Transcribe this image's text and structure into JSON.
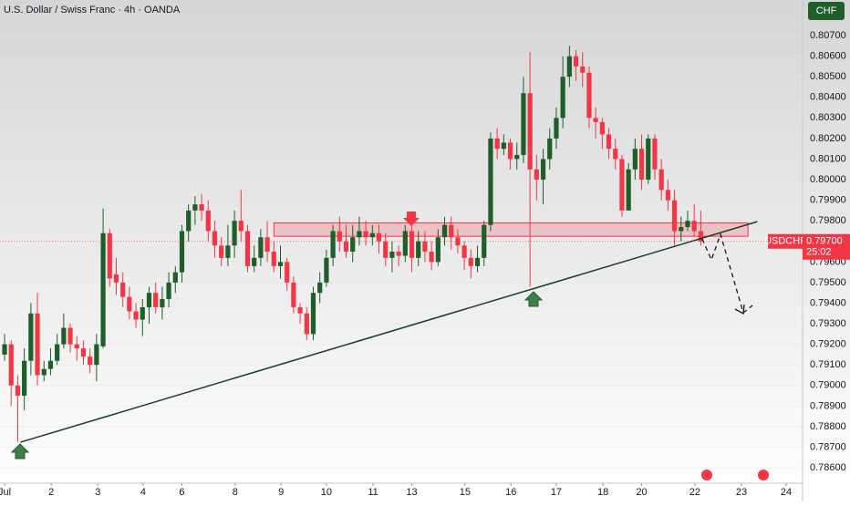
{
  "chart_data": {
    "type": "candlestick",
    "title": "U.S. Dollar / Swiss Franc · 4h · OANDA",
    "currency": "CHF",
    "symbol": "USDCHF",
    "last_price": {
      "value": 0.797,
      "label": "0.79700"
    },
    "countdown": "25:02",
    "up_color": "#1e5e2a",
    "down_color": "#f23645",
    "ylim": [
      0.78525,
      0.80873
    ],
    "xlim": [
      -0.7,
      121.5
    ],
    "yticks": [
      {
        "value": 0.786,
        "label": "0.78600"
      },
      {
        "value": 0.787,
        "label": "0.78700"
      },
      {
        "value": 0.788,
        "label": "0.78800"
      },
      {
        "value": 0.789,
        "label": "0.78900"
      },
      {
        "value": 0.79,
        "label": "0.79000"
      },
      {
        "value": 0.791,
        "label": "0.79100"
      },
      {
        "value": 0.792,
        "label": "0.79200"
      },
      {
        "value": 0.793,
        "label": "0.79300"
      },
      {
        "value": 0.794,
        "label": "0.79400"
      },
      {
        "value": 0.795,
        "label": "0.79500"
      },
      {
        "value": 0.796,
        "label": "0.79600"
      },
      {
        "value": 0.797,
        "label": "0.79700"
      },
      {
        "value": 0.798,
        "label": "0.79800"
      },
      {
        "value": 0.799,
        "label": "0.79900"
      },
      {
        "value": 0.8,
        "label": "0.80000"
      },
      {
        "value": 0.801,
        "label": "0.80100"
      },
      {
        "value": 0.802,
        "label": "0.80200"
      },
      {
        "value": 0.803,
        "label": "0.80300"
      },
      {
        "value": 0.804,
        "label": "0.80400"
      },
      {
        "value": 0.805,
        "label": "0.80500"
      },
      {
        "value": 0.806,
        "label": "0.80600"
      },
      {
        "value": 0.807,
        "label": "0.80700"
      }
    ],
    "xticks": [
      {
        "value": 0,
        "label": "Jul"
      },
      {
        "value": 7.1,
        "label": "2"
      },
      {
        "value": 14.2,
        "label": "3"
      },
      {
        "value": 21.1,
        "label": "4"
      },
      {
        "value": 27,
        "label": "6"
      },
      {
        "value": 35.1,
        "label": "8"
      },
      {
        "value": 42.1,
        "label": "9"
      },
      {
        "value": 49,
        "label": "10"
      },
      {
        "value": 56.1,
        "label": "11"
      },
      {
        "value": 62,
        "label": "13"
      },
      {
        "value": 70.1,
        "label": "15"
      },
      {
        "value": 77.1,
        "label": "16"
      },
      {
        "value": 84,
        "label": "17"
      },
      {
        "value": 91.1,
        "label": "18"
      },
      {
        "value": 97,
        "label": "20"
      },
      {
        "value": 105.1,
        "label": "22"
      },
      {
        "value": 112.2,
        "label": "23"
      },
      {
        "value": 119,
        "label": "24"
      }
    ],
    "zone": {
      "x": [
        41,
        113.2
      ],
      "top": 0.7979,
      "bottom": 0.79725
    },
    "trendline": {
      "x": [
        2.4,
        114.6
      ],
      "y": [
        0.78724,
        0.79796
      ]
    },
    "candles": [
      [
        0.7915,
        0.7925,
        0.7912,
        0.792
      ],
      [
        0.792,
        0.7922,
        0.789,
        0.79
      ],
      [
        0.79,
        0.7905,
        0.78725,
        0.7895
      ],
      [
        0.7895,
        0.7918,
        0.7888,
        0.7912
      ],
      [
        0.7912,
        0.794,
        0.7905,
        0.7935
      ],
      [
        0.7935,
        0.7945,
        0.79,
        0.7905
      ],
      [
        0.7905,
        0.7912,
        0.7902,
        0.7908
      ],
      [
        0.7908,
        0.7918,
        0.7905,
        0.7912
      ],
      [
        0.7912,
        0.7925,
        0.791,
        0.792
      ],
      [
        0.792,
        0.7935,
        0.7918,
        0.7928
      ],
      [
        0.7928,
        0.793,
        0.7916,
        0.792
      ],
      [
        0.792,
        0.7924,
        0.7912,
        0.7918
      ],
      [
        0.7918,
        0.7922,
        0.791,
        0.7914
      ],
      [
        0.7914,
        0.7918,
        0.7906,
        0.791
      ],
      [
        0.791,
        0.7925,
        0.7902,
        0.792
      ],
      [
        0.7919,
        0.7986,
        0.7918,
        0.7974
      ],
      [
        0.7974,
        0.7976,
        0.7948,
        0.7952
      ],
      [
        0.7954,
        0.7962,
        0.7944,
        0.795
      ],
      [
        0.795,
        0.7955,
        0.7938,
        0.7943
      ],
      [
        0.7943,
        0.7948,
        0.7932,
        0.7936
      ],
      [
        0.7936,
        0.794,
        0.7928,
        0.7932
      ],
      [
        0.7932,
        0.7942,
        0.7924,
        0.7938
      ],
      [
        0.7938,
        0.7948,
        0.793,
        0.7945
      ],
      [
        0.7945,
        0.795,
        0.7935,
        0.7938
      ],
      [
        0.7938,
        0.7948,
        0.7932,
        0.7942
      ],
      [
        0.7942,
        0.7955,
        0.7938,
        0.795
      ],
      [
        0.795,
        0.7958,
        0.7945,
        0.7955
      ],
      [
        0.7955,
        0.7978,
        0.795,
        0.7975
      ],
      [
        0.7975,
        0.7988,
        0.797,
        0.7985
      ],
      [
        0.7985,
        0.7992,
        0.7978,
        0.7988
      ],
      [
        0.7988,
        0.7993,
        0.798,
        0.7985
      ],
      [
        0.7985,
        0.799,
        0.797,
        0.7975
      ],
      [
        0.7975,
        0.798,
        0.7962,
        0.7968
      ],
      [
        0.7968,
        0.7972,
        0.7958,
        0.7962
      ],
      [
        0.7962,
        0.7978,
        0.7958,
        0.7968
      ],
      [
        0.7968,
        0.7985,
        0.7962,
        0.798
      ],
      [
        0.798,
        0.7995,
        0.797,
        0.7975
      ],
      [
        0.7975,
        0.7978,
        0.7955,
        0.7958
      ],
      [
        0.7958,
        0.7968,
        0.7955,
        0.7962
      ],
      [
        0.7962,
        0.7976,
        0.7958,
        0.7972
      ],
      [
        0.7972,
        0.798,
        0.796,
        0.7965
      ],
      [
        0.7965,
        0.797,
        0.7955,
        0.7958
      ],
      [
        0.7958,
        0.7968,
        0.7952,
        0.796
      ],
      [
        0.796,
        0.7962,
        0.7946,
        0.795
      ],
      [
        0.795,
        0.7953,
        0.7935,
        0.7938
      ],
      [
        0.7938,
        0.794,
        0.793,
        0.7935
      ],
      [
        0.7935,
        0.7938,
        0.7922,
        0.7925
      ],
      [
        0.7925,
        0.7948,
        0.7922,
        0.7945
      ],
      [
        0.7945,
        0.7955,
        0.794,
        0.795
      ],
      [
        0.795,
        0.7966,
        0.7948,
        0.7962
      ],
      [
        0.7962,
        0.7978,
        0.7958,
        0.7975
      ],
      [
        0.7975,
        0.7982,
        0.7965,
        0.797
      ],
      [
        0.797,
        0.7978,
        0.7962,
        0.7965
      ],
      [
        0.7965,
        0.7978,
        0.796,
        0.7972
      ],
      [
        0.7972,
        0.7982,
        0.7968,
        0.7975
      ],
      [
        0.7975,
        0.798,
        0.7968,
        0.7972
      ],
      [
        0.7972,
        0.7978,
        0.7968,
        0.7974
      ],
      [
        0.7974,
        0.7978,
        0.7964,
        0.797
      ],
      [
        0.797,
        0.7974,
        0.7958,
        0.7962
      ],
      [
        0.7962,
        0.797,
        0.7955,
        0.7965
      ],
      [
        0.7965,
        0.7968,
        0.7958,
        0.7963
      ],
      [
        0.7963,
        0.7978,
        0.796,
        0.7975
      ],
      [
        0.7975,
        0.7978,
        0.7955,
        0.7962
      ],
      [
        0.7962,
        0.7975,
        0.7958,
        0.797
      ],
      [
        0.797,
        0.7975,
        0.796,
        0.7965
      ],
      [
        0.7965,
        0.797,
        0.7956,
        0.796
      ],
      [
        0.796,
        0.7976,
        0.7958,
        0.7972
      ],
      [
        0.7972,
        0.7982,
        0.7968,
        0.7978
      ],
      [
        0.7978,
        0.7982,
        0.7966,
        0.7972
      ],
      [
        0.7972,
        0.7976,
        0.7964,
        0.7968
      ],
      [
        0.7968,
        0.797,
        0.7956,
        0.7962
      ],
      [
        0.7962,
        0.7966,
        0.7952,
        0.7958
      ],
      [
        0.7958,
        0.7968,
        0.7955,
        0.7962
      ],
      [
        0.7962,
        0.798,
        0.7958,
        0.7978
      ],
      [
        0.7978,
        0.8023,
        0.7975,
        0.802
      ],
      [
        0.802,
        0.8025,
        0.801,
        0.8015
      ],
      [
        0.8015,
        0.8022,
        0.8012,
        0.8018
      ],
      [
        0.8018,
        0.802,
        0.8005,
        0.801
      ],
      [
        0.801,
        0.8018,
        0.8005,
        0.8012
      ],
      [
        0.8012,
        0.805,
        0.8008,
        0.8042
      ],
      [
        0.8042,
        0.8062,
        0.7948,
        0.8005
      ],
      [
        0.8005,
        0.8012,
        0.799,
        0.8
      ],
      [
        0.8,
        0.8015,
        0.7988,
        0.801
      ],
      [
        0.801,
        0.8025,
        0.8005,
        0.802
      ],
      [
        0.802,
        0.8035,
        0.8015,
        0.803
      ],
      [
        0.803,
        0.806,
        0.8025,
        0.805
      ],
      [
        0.805,
        0.8065,
        0.8045,
        0.806
      ],
      [
        0.806,
        0.8063,
        0.8048,
        0.8055
      ],
      [
        0.8055,
        0.8062,
        0.8045,
        0.8052
      ],
      [
        0.8052,
        0.8055,
        0.8025,
        0.803
      ],
      [
        0.803,
        0.8035,
        0.802,
        0.8028
      ],
      [
        0.8028,
        0.803,
        0.8015,
        0.8022
      ],
      [
        0.8022,
        0.8025,
        0.801,
        0.8015
      ],
      [
        0.8015,
        0.802,
        0.8005,
        0.801
      ],
      [
        0.801,
        0.8012,
        0.7982,
        0.7985
      ],
      [
        0.7985,
        0.8008,
        0.7985,
        0.8005
      ],
      [
        0.8005,
        0.802,
        0.8,
        0.8015
      ],
      [
        0.8015,
        0.8022,
        0.7995,
        0.8
      ],
      [
        0.8,
        0.8022,
        0.7998,
        0.802
      ],
      [
        0.802,
        0.8022,
        0.8,
        0.8005
      ],
      [
        0.8005,
        0.801,
        0.799,
        0.7995
      ],
      [
        0.7995,
        0.8,
        0.7985,
        0.799
      ],
      [
        0.799,
        0.7995,
        0.7968,
        0.7975
      ],
      [
        0.7975,
        0.7982,
        0.797,
        0.7977
      ],
      [
        0.7977,
        0.7985,
        0.7975,
        0.798
      ],
      [
        0.798,
        0.7988,
        0.7972,
        0.7975
      ],
      [
        0.7975,
        0.7985,
        0.7968,
        0.797
      ]
    ]
  }
}
